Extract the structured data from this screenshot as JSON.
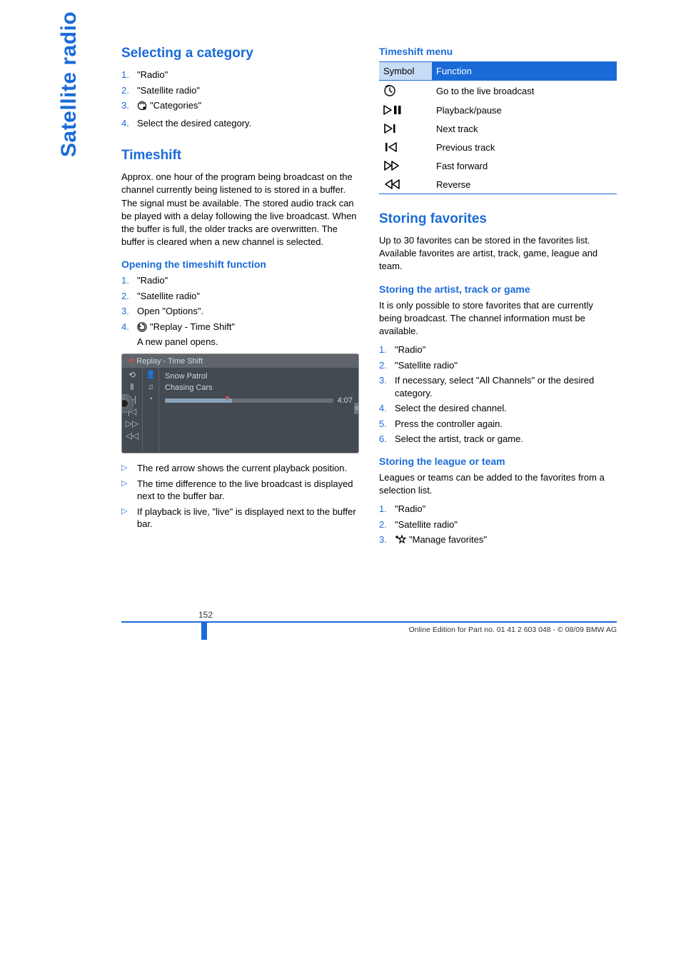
{
  "side_tab": "Satellite radio",
  "left": {
    "section_select": "Selecting a category",
    "select_steps": [
      "\"Radio\"",
      "\"Satellite radio\"",
      "\"Categories\"",
      "Select the desired category."
    ],
    "section_timeshift": "Timeshift",
    "timeshift_body": "Approx. one hour of the program being broadcast on the channel currently being listened to is stored in a buffer. The signal must be available. The stored audio track can be played with a delay following the live broadcast. When the buffer is full, the older tracks are overwritten. The buffer is cleared when a new channel is selected.",
    "opening_heading": "Opening the timeshift function",
    "opening_steps": [
      "\"Radio\"",
      "\"Satellite radio\"",
      "Open \"Options\".",
      "\"Replay - Time Shift\""
    ],
    "opening_step4_extra": "A new panel opens.",
    "screenshot": {
      "title": "Replay - Time Shift",
      "row1": "Snow Patrol",
      "row2": "Chasing Cars",
      "time": "4:07",
      "bar_fill_pct": 40,
      "arrow_pct": 35
    },
    "bullets": [
      "The red arrow shows the current playback position.",
      "The time difference to the live broadcast is displayed next to the buffer bar.",
      "If playback is live, \"live\" is displayed next to the buffer bar."
    ]
  },
  "right": {
    "menu_heading": "Timeshift menu",
    "table_headers": {
      "symbol": "Symbol",
      "function": "Function"
    },
    "table_rows": [
      "Go to the live broadcast",
      "Playback/pause",
      "Next track",
      "Previous track",
      "Fast forward",
      "Reverse"
    ],
    "section_fav": "Storing favorites",
    "fav_body": "Up to 30 favorites can be stored in the favorites list. Available favorites are artist, track, game, league and team.",
    "artist_heading": "Storing the artist, track or game",
    "artist_body": "It is only possible to store favorites that are currently being broadcast. The channel information must be available.",
    "artist_steps": [
      "\"Radio\"",
      "\"Satellite radio\"",
      "If necessary, select \"All Channels\" or the desired category.",
      "Select the desired channel.",
      "Press the controller again.",
      "Select the artist, track or game."
    ],
    "league_heading": "Storing the league or team",
    "league_body": "Leagues or teams can be added to the favorites from a selection list.",
    "league_steps": [
      "\"Radio\"",
      "\"Satellite radio\"",
      "\"Manage favorites\""
    ]
  },
  "footer": {
    "page": "152",
    "edition": "Online Edition for Part no. 01 41 2 603 048 - © 08/09 BMW AG"
  }
}
